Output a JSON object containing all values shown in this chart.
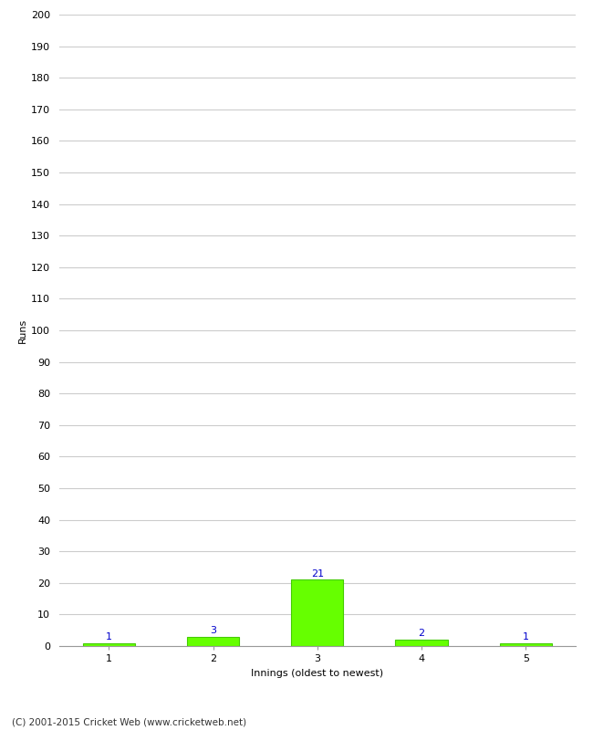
{
  "categories": [
    1,
    2,
    3,
    4,
    5
  ],
  "values": [
    1,
    3,
    21,
    2,
    1
  ],
  "bar_color": "#66ff00",
  "bar_edge_color": "#44cc00",
  "label_color": "#0000cc",
  "ylabel": "Runs",
  "xlabel": "Innings (oldest to newest)",
  "ylim": [
    0,
    200
  ],
  "yticks": [
    0,
    10,
    20,
    30,
    40,
    50,
    60,
    70,
    80,
    90,
    100,
    110,
    120,
    130,
    140,
    150,
    160,
    170,
    180,
    190,
    200
  ],
  "grid_color": "#cccccc",
  "background_color": "#ffffff",
  "footer": "(C) 2001-2015 Cricket Web (www.cricketweb.net)"
}
